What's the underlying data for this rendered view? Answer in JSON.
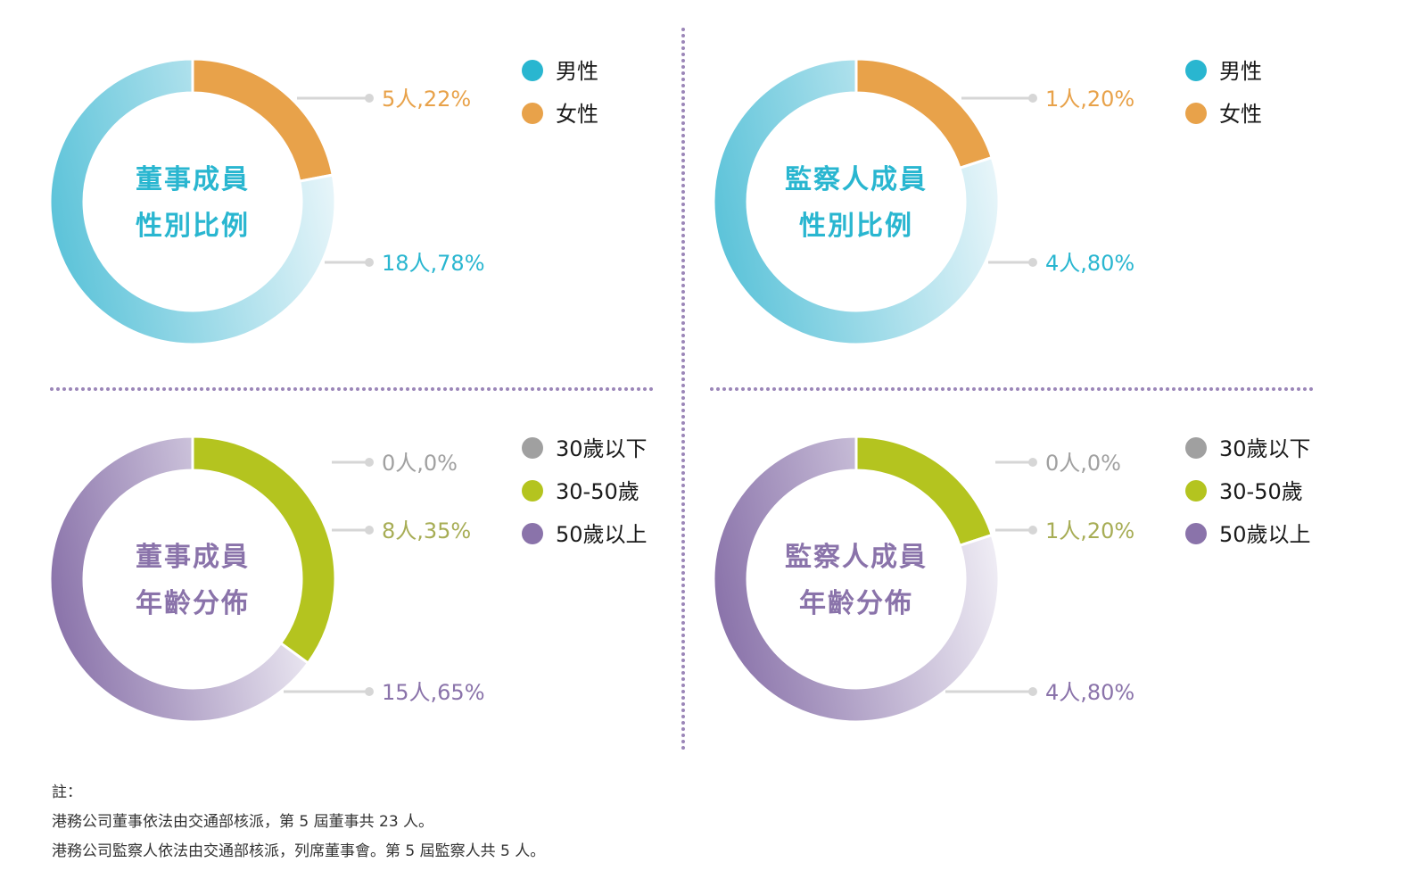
{
  "chart_data": [
    {
      "type": "pie",
      "title": "董事成員\n性別比例",
      "title_color": "#29b6d0",
      "start": "12-o-clock-clockwise",
      "legend": {
        "position": "right"
      },
      "slices": [
        {
          "name": "女性",
          "count": 5,
          "percent": 22,
          "label": "5人,22%",
          "color": "#e8a24a",
          "label_color": "#e8a24a"
        },
        {
          "name": "男性",
          "count": 18,
          "percent": 78,
          "label": "18人,78%",
          "color": "#29b6d0",
          "gradient": [
            "#eaf6fa",
            "#5cc3d9"
          ],
          "label_color": "#29b6d0"
        }
      ],
      "legend_entries": [
        {
          "name": "男性",
          "color": "#29b6d0"
        },
        {
          "name": "女性",
          "color": "#e8a24a"
        }
      ]
    },
    {
      "type": "pie",
      "title": "監察人成員\n性別比例",
      "title_color": "#29b6d0",
      "start": "12-o-clock-clockwise",
      "legend": {
        "position": "right"
      },
      "slices": [
        {
          "name": "女性",
          "count": 1,
          "percent": 20,
          "label": "1人,20%",
          "color": "#e8a24a",
          "label_color": "#e8a24a"
        },
        {
          "name": "男性",
          "count": 4,
          "percent": 80,
          "label": "4人,80%",
          "color": "#29b6d0",
          "gradient": [
            "#eaf6fa",
            "#5cc3d9"
          ],
          "label_color": "#29b6d0"
        }
      ],
      "legend_entries": [
        {
          "name": "男性",
          "color": "#29b6d0"
        },
        {
          "name": "女性",
          "color": "#e8a24a"
        }
      ]
    },
    {
      "type": "pie",
      "title": "董事成員\n年齡分佈",
      "title_color": "#8a73aa",
      "start": "12-o-clock-clockwise",
      "legend": {
        "position": "right"
      },
      "slices": [
        {
          "name": "30歲以下",
          "count": 0,
          "percent": 0,
          "label": "0人,0%",
          "color": "#a0a0a0",
          "label_color": "#a0a0a0"
        },
        {
          "name": "30-50歲",
          "count": 8,
          "percent": 35,
          "label": "8人,35%",
          "color": "#b4c41f",
          "label_color": "#a7ad55"
        },
        {
          "name": "50歲以上",
          "count": 15,
          "percent": 65,
          "label": "15人,65%",
          "color": "#8a73aa",
          "gradient": [
            "#f1eff6",
            "#8a73aa"
          ],
          "label_color": "#8a73aa"
        }
      ],
      "legend_entries": [
        {
          "name": "30歲以下",
          "color": "#a0a0a0"
        },
        {
          "name": "30-50歲",
          "color": "#b4c41f"
        },
        {
          "name": "50歲以上",
          "color": "#8a73aa"
        }
      ]
    },
    {
      "type": "pie",
      "title": "監察人成員\n年齡分佈",
      "title_color": "#8a73aa",
      "start": "12-o-clock-clockwise",
      "legend": {
        "position": "right"
      },
      "slices": [
        {
          "name": "30歲以下",
          "count": 0,
          "percent": 0,
          "label": "0人,0%",
          "color": "#a0a0a0",
          "label_color": "#a0a0a0"
        },
        {
          "name": "30-50歲",
          "count": 1,
          "percent": 20,
          "label": "1人,20%",
          "color": "#b4c41f",
          "label_color": "#a7ad55"
        },
        {
          "name": "50歲以上",
          "count": 4,
          "percent": 80,
          "label": "4人,80%",
          "color": "#8a73aa",
          "gradient": [
            "#f1eff6",
            "#8a73aa"
          ],
          "label_color": "#8a73aa"
        }
      ],
      "legend_entries": [
        {
          "name": "30歲以下",
          "color": "#a0a0a0"
        },
        {
          "name": "30-50歲",
          "color": "#b4c41f"
        },
        {
          "name": "50歲以上",
          "color": "#8a73aa"
        }
      ]
    }
  ],
  "divider_color": "#9b86b8",
  "leader_color": "#d6d6d6",
  "notes": {
    "heading": "註：",
    "lines": [
      "港務公司董事依法由交通部核派，第 5 屆董事共 23 人。",
      "港務公司監察人依法由交通部核派，列席董事會。第 5 屆監察人共 5 人。"
    ]
  }
}
